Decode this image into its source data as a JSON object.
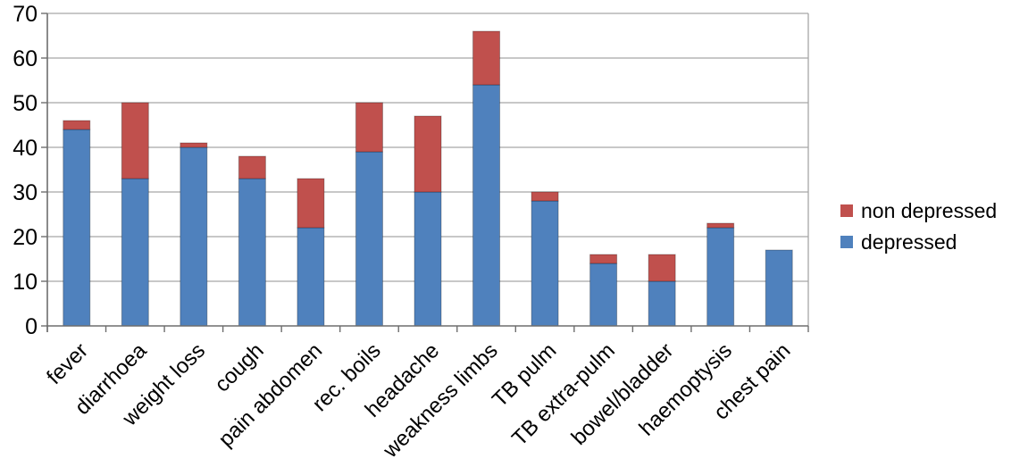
{
  "chart_data": {
    "type": "bar",
    "stacked": true,
    "title": "",
    "xlabel": "",
    "ylabel": "",
    "categories": [
      "fever",
      "diarrhoea",
      "weight loss",
      "cough",
      "pain abdomen",
      "rec. boils",
      "headache",
      "weakness limbs",
      "TB pulm",
      "TB extra-pulm",
      "bowel/bladder",
      "haemoptysis",
      "chest pain"
    ],
    "series": [
      {
        "name": "depressed",
        "color": "#4F81BD",
        "values": [
          44,
          33,
          40,
          33,
          22,
          39,
          30,
          54,
          28,
          14,
          10,
          22,
          17
        ]
      },
      {
        "name": "non depressed",
        "color": "#C0504D",
        "values": [
          2,
          17,
          1,
          5,
          11,
          11,
          17,
          12,
          2,
          2,
          6,
          1,
          0
        ]
      }
    ],
    "stack_totals": [
      46,
      50,
      41,
      38,
      33,
      50,
      47,
      66,
      30,
      16,
      16,
      23,
      17
    ],
    "ylim": [
      0,
      70
    ],
    "ytick_interval": 10,
    "ytick_labels": [
      "0",
      "10",
      "20",
      "30",
      "40",
      "50",
      "60",
      "70"
    ],
    "grid": true,
    "legend_position": "right",
    "legend": [
      {
        "label": "non depressed",
        "color": "#C0504D"
      },
      {
        "label": "depressed",
        "color": "#4F81BD"
      }
    ]
  },
  "colors": {
    "depressed": "#4F81BD",
    "non_depressed": "#C0504D",
    "gridline": "#a6a6a6",
    "axis": "#6e6e6e",
    "text": "#000000",
    "background": "#ffffff"
  }
}
